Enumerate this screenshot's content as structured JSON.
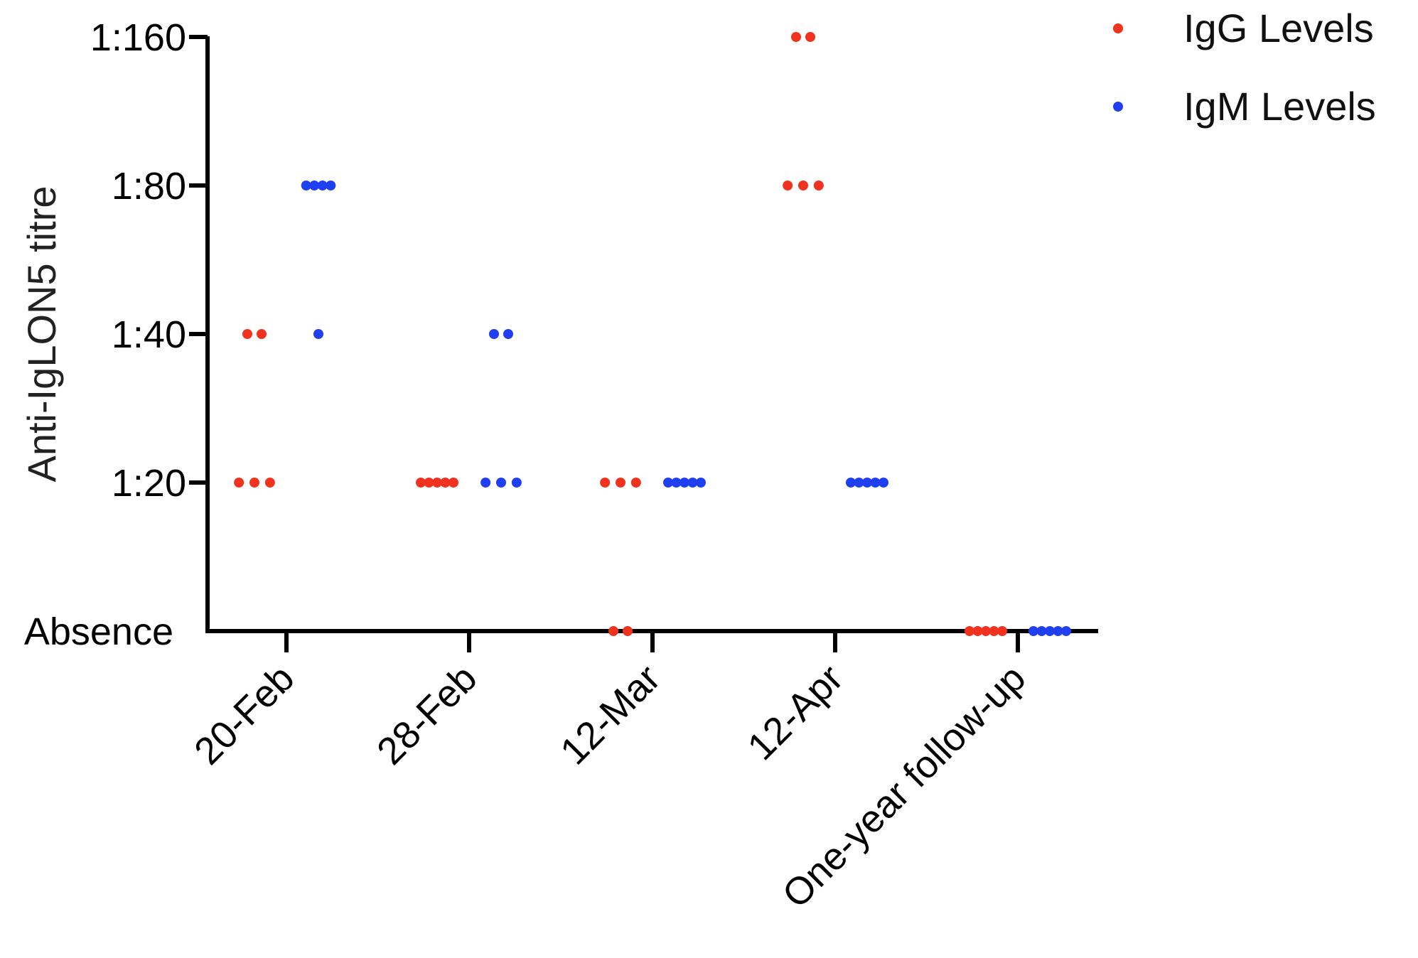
{
  "chart_data": {
    "type": "scatter",
    "ylabel": "Anti-IgLON5 titre",
    "xlabel": "",
    "categories": [
      "20-Feb",
      "28-Feb",
      "12-Mar",
      "12-Apr",
      "One-year follow-up"
    ],
    "y_levels": [
      "Absence",
      "1:20",
      "1:40",
      "1:80",
      "1:160"
    ],
    "legend_position": "top-right",
    "series": [
      {
        "name": "IgG Levels",
        "color": "#f0321e",
        "values": [
          [
            "1:20",
            "1:20",
            "1:20",
            "1:40",
            "1:40"
          ],
          [
            "1:20",
            "1:20",
            "1:20",
            "1:20",
            "1:20"
          ],
          [
            "1:20",
            "1:20",
            "1:20",
            "Absence",
            "Absence"
          ],
          [
            "1:80",
            "1:80",
            "1:80",
            "1:160",
            "1:160"
          ],
          [
            "Absence",
            "Absence",
            "Absence",
            "Absence",
            "Absence"
          ]
        ]
      },
      {
        "name": "IgM Levels",
        "color": "#1f3ff0",
        "values": [
          [
            "1:80",
            "1:80",
            "1:80",
            "1:80",
            "1:40"
          ],
          [
            "1:20",
            "1:20",
            "1:20",
            "1:40",
            "1:40"
          ],
          [
            "1:20",
            "1:20",
            "1:20",
            "1:20",
            "1:20"
          ],
          [
            "1:20",
            "1:20",
            "1:20",
            "1:20",
            "1:20"
          ],
          [
            "Absence",
            "Absence",
            "Absence",
            "Absence",
            "Absence"
          ]
        ]
      }
    ]
  }
}
